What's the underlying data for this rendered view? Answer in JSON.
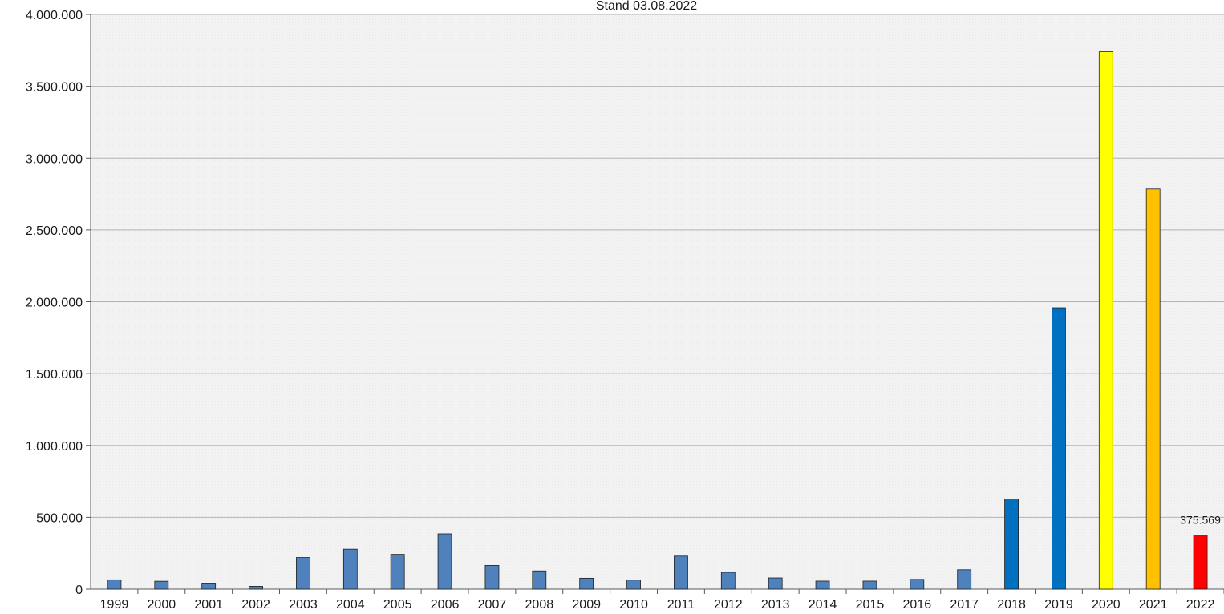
{
  "chart_data": {
    "type": "bar",
    "title": "",
    "subtitle": "Stand 03.08.2022",
    "xlabel": "",
    "ylabel": "",
    "ylim": [
      0,
      4000000
    ],
    "yticks": [
      0,
      500000,
      1000000,
      1500000,
      2000000,
      2500000,
      3000000,
      3500000,
      4000000
    ],
    "ytick_labels": [
      "0",
      "500.000",
      "1.000.000",
      "1.500.000",
      "2.000.000",
      "2.500.000",
      "3.000.000",
      "3.500.000",
      "4.000.000"
    ],
    "grid": "horizontal",
    "legend": "none",
    "categories": [
      "1999",
      "2000",
      "2001",
      "2002",
      "2003",
      "2004",
      "2005",
      "2006",
      "2007",
      "2008",
      "2009",
      "2010",
      "2011",
      "2012",
      "2013",
      "2014",
      "2015",
      "2016",
      "2017",
      "2018",
      "2019",
      "2020",
      "2021",
      "2022"
    ],
    "values": [
      65000,
      55000,
      42000,
      20000,
      220000,
      278000,
      242000,
      385000,
      165000,
      127000,
      76000,
      63000,
      230000,
      117000,
      78000,
      56000,
      56000,
      68000,
      135000,
      628000,
      1958000,
      3740000,
      2785000,
      375569
    ],
    "colors": [
      "#4f81bd",
      "#4f81bd",
      "#4f81bd",
      "#4f81bd",
      "#4f81bd",
      "#4f81bd",
      "#4f81bd",
      "#4f81bd",
      "#4f81bd",
      "#4f81bd",
      "#4f81bd",
      "#4f81bd",
      "#4f81bd",
      "#4f81bd",
      "#4f81bd",
      "#4f81bd",
      "#4f81bd",
      "#4f81bd",
      "#4f81bd",
      "#0070c0",
      "#0070c0",
      "#ffff00",
      "#ffc000",
      "#ff0000"
    ],
    "data_labels": [
      {
        "category": "2022",
        "text": "375.569"
      }
    ]
  }
}
